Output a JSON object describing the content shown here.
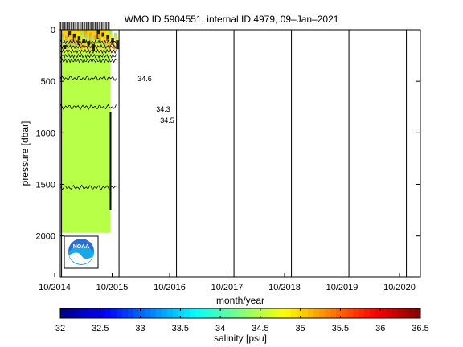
{
  "title": "WMO ID 5904551, internal ID 4979, 09–Jan–2021",
  "chart_data": {
    "type": "heatmap",
    "title": "WMO ID 5904551, internal ID 4979, 09–Jan–2021",
    "xlabel": "month/year",
    "ylabel": "pressure [dbar]",
    "x_tick_labels": [
      "10/2014",
      "10/2015",
      "10/2016",
      "10/2017",
      "10/2018",
      "10/2019",
      "10/2020"
    ],
    "x_tick_years": [
      2014.75,
      2015.75,
      2016.75,
      2017.75,
      2018.75,
      2019.75,
      2020.75
    ],
    "xlim": [
      2014.75,
      2020.75
    ],
    "ylim": [
      2400,
      0
    ],
    "y_ticks": [
      0,
      500,
      1000,
      1500,
      2000
    ],
    "y_reversed": true,
    "grid": false,
    "profile_period": [
      2014.75,
      2015.75
    ],
    "profile_bottom_dbar": 1970,
    "salinity_field": [
      {
        "pmin": 0,
        "pmax": 80,
        "salinity": 35.0
      },
      {
        "pmin": 80,
        "pmax": 220,
        "salinity": 34.65
      },
      {
        "pmin": 220,
        "pmax": 2000,
        "salinity": 34.5
      }
    ],
    "contours": [
      {
        "label": "34.6",
        "pressure": 470
      },
      {
        "label": "34.3",
        "pressure": 750
      },
      {
        "label": "34.5",
        "pressure": 1530
      }
    ],
    "contour_labels": [
      "34.6",
      "34.3",
      "34.5"
    ],
    "colorbar": {
      "label": "salinity [psu]",
      "range": [
        32,
        36.5
      ],
      "ticks": [
        "32",
        "32.5",
        "33",
        "33.5",
        "34",
        "34.5",
        "35",
        "35.5",
        "36",
        "36.5"
      ],
      "colormap": "jet"
    },
    "logo": "noaa-logo"
  }
}
